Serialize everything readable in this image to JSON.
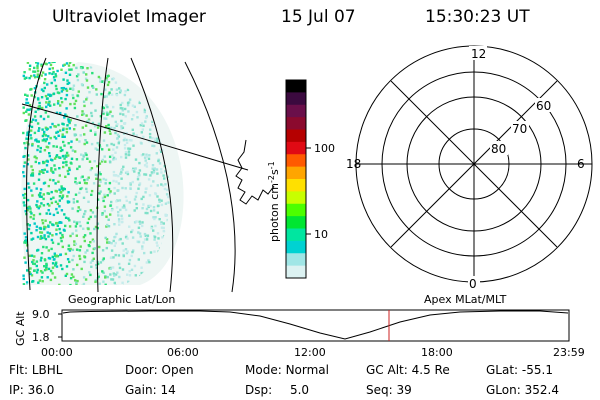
{
  "header": {
    "instrument": "Ultraviolet Imager",
    "date": "15 Jul 07",
    "time": "15:30:23 UT"
  },
  "colorbar": {
    "unit_label": "photon cm",
    "unit_exp1": "-2",
    "unit_mid": "s",
    "unit_exp2": "-1",
    "ticks": [
      "100",
      "10"
    ],
    "colors": [
      "#000000",
      "#3b0a3f",
      "#6a0f4a",
      "#8b0a2e",
      "#b50000",
      "#e00a14",
      "#ff5a00",
      "#ffa500",
      "#ffe000",
      "#c8ff00",
      "#4cff00",
      "#00e632",
      "#00e6a0",
      "#00d2d2",
      "#a0e6e6",
      "#dcf2f2"
    ]
  },
  "polar_plot": {
    "mlt_labels": [
      "12",
      "18",
      "6",
      "0"
    ],
    "lat_labels": [
      "60",
      "70",
      "80"
    ]
  },
  "timeline": {
    "axis_label": "GC Alt",
    "left_title": "Geographic Lat/Lon",
    "right_title": "Apex MLat/MLT",
    "y_ticks": [
      "9.0",
      "1.8"
    ],
    "x_ticks": [
      "00:00",
      "06:00",
      "12:00",
      "18:00",
      "23:59"
    ],
    "marker_color": "#cc2222"
  },
  "status": {
    "row1": [
      {
        "label": "Flt:",
        "value": "LBHL"
      },
      {
        "label": "Door:",
        "value": "Open"
      },
      {
        "label": "Mode:",
        "value": "Normal"
      },
      {
        "label": "GC Alt:",
        "value": "4.5 Re"
      },
      {
        "label": "GLat:",
        "value": "-55.1"
      }
    ],
    "row2": [
      {
        "label": "IP:",
        "value": "36.0"
      },
      {
        "label": "Gain:",
        "value": "14"
      },
      {
        "label": "Dsp:",
        "value": "5.0"
      },
      {
        "label": "Seq:",
        "value": "39"
      },
      {
        "label": "GLon:",
        "value": "352.4"
      }
    ]
  }
}
